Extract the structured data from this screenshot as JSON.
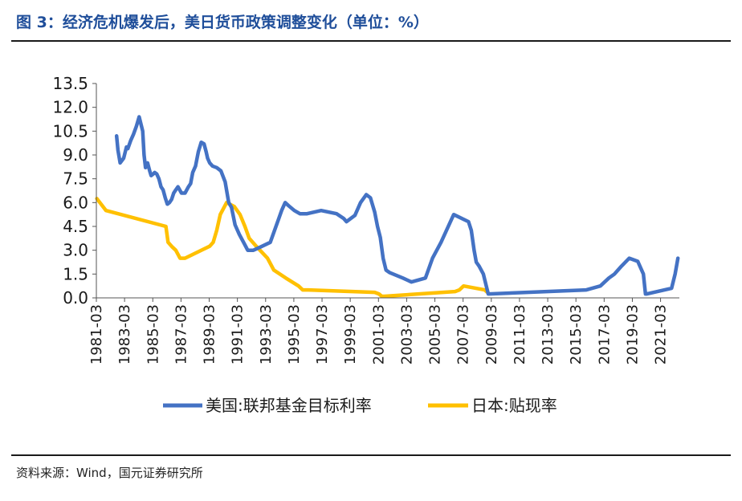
{
  "figure": {
    "title": "图 3：经济危机爆发后，美日货币政策调整变化（单位：%）",
    "source": "资料来源：Wind，国元证券研究所"
  },
  "colors": {
    "us": "#4472c4",
    "jp": "#ffc000",
    "rule": "#1a1a1a",
    "title": "#1f4e9a"
  },
  "chart_data": {
    "type": "line",
    "title": "",
    "xlabel": "",
    "ylabel": "",
    "ylim": [
      0,
      13.5
    ],
    "yticks": [
      0.0,
      1.5,
      3.0,
      4.5,
      6.0,
      7.5,
      9.0,
      10.5,
      12.0,
      13.5
    ],
    "ytick_labels": [
      "0.0",
      "1.5",
      "3.0",
      "4.5",
      "6.0",
      "7.5",
      "9.0",
      "10.5",
      "12.0",
      "13.5"
    ],
    "xlim": [
      1981.167,
      2022.5
    ],
    "xtick_labels": [
      "1981-03",
      "1983-03",
      "1985-03",
      "1987-03",
      "1989-03",
      "1991-03",
      "1993-03",
      "1995-03",
      "1997-03",
      "1999-03",
      "2001-03",
      "2003-03",
      "2005-03",
      "2007-03",
      "2009-03",
      "2011-03",
      "2013-03",
      "2015-03",
      "2017-03",
      "2019-03",
      "2021-03"
    ],
    "grid": false,
    "legend": "bottom",
    "series": [
      {
        "name": "美国:联邦基金目标利率",
        "color": "#4472c4",
        "x": [
          1982.6,
          1982.7,
          1982.85,
          1983.1,
          1983.3,
          1983.4,
          1983.6,
          1983.8,
          1984.0,
          1984.2,
          1984.45,
          1984.55,
          1984.65,
          1984.8,
          1984.95,
          1985.05,
          1985.2,
          1985.3,
          1985.45,
          1985.6,
          1985.75,
          1985.9,
          1986.05,
          1986.2,
          1986.35,
          1986.5,
          1986.65,
          1986.8,
          1986.95,
          1987.2,
          1987.45,
          1987.7,
          1987.85,
          1988.0,
          1988.2,
          1988.4,
          1988.6,
          1988.8,
          1988.95,
          1989.05,
          1989.2,
          1989.4,
          1989.7,
          1990.0,
          1990.3,
          1990.55,
          1990.75,
          1991.0,
          1991.3,
          1991.6,
          1991.9,
          1992.3,
          1992.8,
          1993.5,
          1994.1,
          1994.3,
          1994.55,
          1994.8,
          1995.2,
          1995.6,
          1996.1,
          1997.1,
          1998.2,
          1998.7,
          1998.9,
          1999.5,
          1999.9,
          2000.3,
          2000.6,
          2000.9,
          2001.1,
          2001.3,
          2001.5,
          2001.7,
          2001.95,
          2002.9,
          2003.5,
          2004.5,
          2005.0,
          2005.6,
          2006.5,
          2007.55,
          2007.75,
          2007.95,
          2008.1,
          2008.3,
          2008.6,
          2008.95,
          2009.0,
          2015.9,
          2016.9,
          2017.5,
          2017.9,
          2018.4,
          2018.95,
          2019.55,
          2019.95,
          2020.1,
          2020.2,
          2021.95,
          2022.2,
          2022.4
        ],
        "values": [
          10.2,
          9.3,
          8.5,
          8.8,
          9.5,
          9.4,
          9.9,
          10.3,
          10.8,
          11.4,
          10.5,
          9.0,
          8.2,
          8.5,
          8.0,
          7.7,
          7.8,
          7.9,
          7.8,
          7.5,
          7.0,
          6.8,
          6.3,
          5.9,
          6.0,
          6.2,
          6.6,
          6.8,
          7.0,
          6.6,
          6.6,
          7.0,
          7.2,
          7.9,
          8.3,
          9.2,
          9.8,
          9.7,
          9.2,
          8.8,
          8.5,
          8.3,
          8.2,
          8.0,
          7.3,
          6.0,
          5.7,
          4.6,
          4.0,
          3.5,
          3.0,
          3.0,
          3.2,
          3.5,
          5.0,
          5.5,
          6.0,
          5.8,
          5.5,
          5.3,
          5.3,
          5.5,
          5.3,
          5.0,
          4.8,
          5.2,
          6.0,
          6.5,
          6.3,
          5.4,
          4.5,
          3.8,
          2.5,
          1.75,
          1.6,
          1.25,
          1.0,
          1.25,
          2.5,
          3.5,
          5.25,
          4.8,
          4.25,
          3.0,
          2.25,
          2.0,
          1.5,
          0.25,
          0.25,
          0.5,
          0.75,
          1.25,
          1.5,
          2.0,
          2.5,
          2.3,
          1.5,
          0.25,
          0.25,
          0.6,
          1.5,
          2.5
        ]
      },
      {
        "name": "日本:贴现率",
        "color": "#ffc000",
        "x": [
          1981.2,
          1981.85,
          1986.1,
          1986.25,
          1986.55,
          1986.8,
          1987.1,
          1987.45,
          1989.2,
          1989.45,
          1989.7,
          1989.95,
          1990.4,
          1990.95,
          1991.35,
          1991.7,
          1992.0,
          1992.5,
          1993.3,
          1993.75,
          1994.6,
          1995.5,
          1995.8,
          1996.2,
          2000.9,
          2001.2,
          2001.4,
          2001.6,
          2006.6,
          2006.9,
          2007.2,
          2008.7,
          2008.95
        ],
        "values": [
          6.25,
          5.5,
          4.5,
          3.5,
          3.2,
          3.0,
          2.5,
          2.5,
          3.25,
          3.5,
          4.25,
          5.25,
          6.0,
          5.75,
          5.25,
          4.5,
          3.75,
          3.25,
          2.5,
          1.75,
          1.25,
          0.75,
          0.5,
          0.5,
          0.35,
          0.25,
          0.1,
          0.1,
          0.4,
          0.5,
          0.75,
          0.5,
          0.3
        ]
      }
    ]
  }
}
